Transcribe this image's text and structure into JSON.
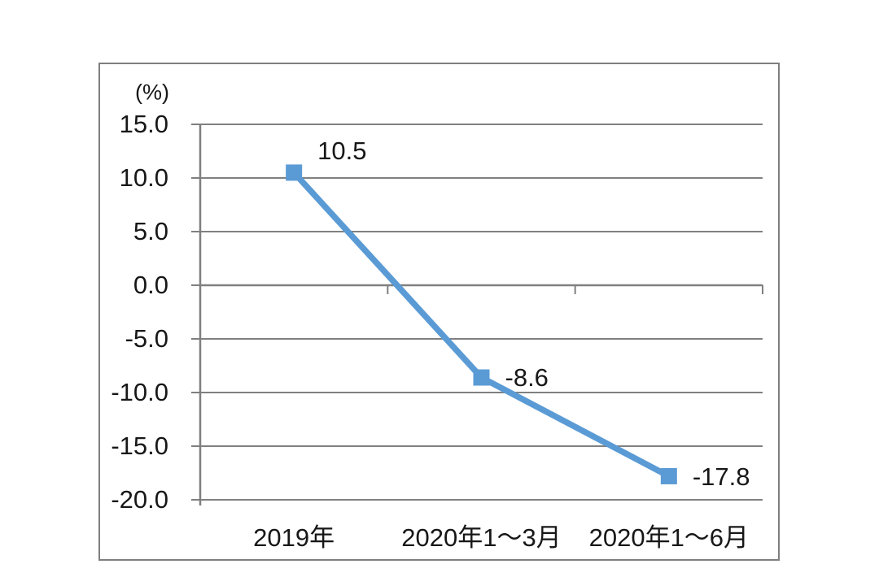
{
  "chart_data": {
    "type": "line",
    "title": "",
    "xlabel": "",
    "y_axis_unit": "(%)",
    "categories": [
      "2019年",
      "2020年1～3月",
      "2020年1～6月"
    ],
    "values": [
      10.5,
      -8.6,
      -17.8
    ],
    "data_labels": [
      "10.5",
      "-8.6",
      "-17.8"
    ],
    "yticks": [
      15.0,
      10.0,
      5.0,
      0.0,
      -5.0,
      -10.0,
      -15.0,
      -20.0
    ],
    "ytick_labels": [
      "15.0",
      "10.0",
      "5.0",
      "0.0",
      "-5.0",
      "-10.0",
      "-15.0",
      "-20.0"
    ],
    "ylim": [
      -20,
      15
    ],
    "grid": true,
    "legend": "none",
    "line_color": "#5B9BD5",
    "marker": "square",
    "gridline_color": "#808080",
    "axis_color": "#7F7F7F",
    "border_color": "#7F7F7F",
    "text_color": "#171717"
  }
}
